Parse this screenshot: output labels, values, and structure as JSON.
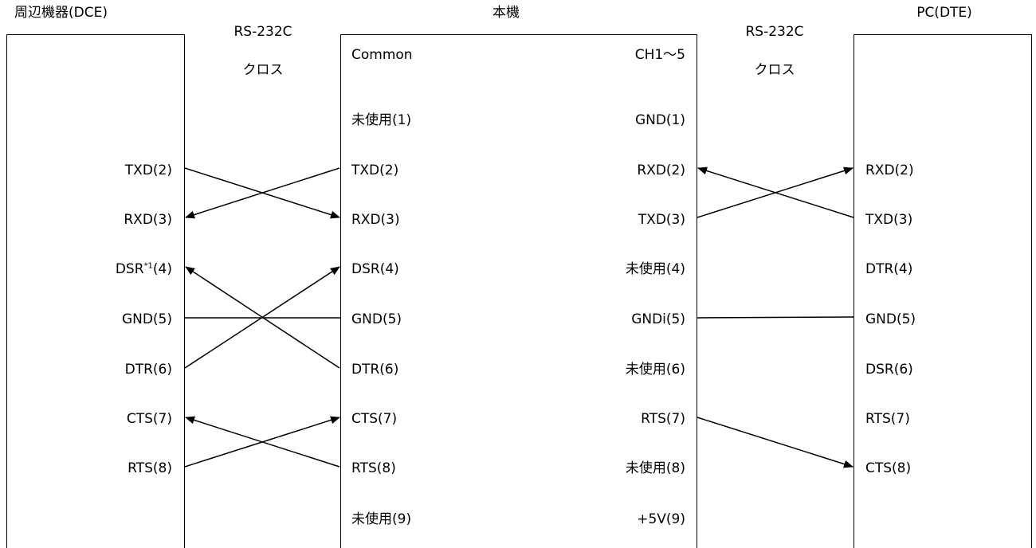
{
  "titles": {
    "dce": "周辺機器(DCE)",
    "main": "本機",
    "dte": "PC(DTE)"
  },
  "links": {
    "left": {
      "label1": "RS-232C",
      "label2": "クロス"
    },
    "right": {
      "label1": "RS-232C",
      "label2": "クロス"
    }
  },
  "main_headers": {
    "left": "Common",
    "right": "CH1～5"
  },
  "dce_pins": [
    "TXD(2)",
    "RXD(3)",
    "DSR",
    "GND(5)",
    "DTR(6)",
    "CTS(7)",
    "RTS(8)"
  ],
  "dce_dsr": {
    "sup": "*1",
    "tail": "(4)"
  },
  "main_left_pins": [
    "未使用(1)",
    "TXD(2)",
    "RXD(3)",
    "DSR(4)",
    "GND(5)",
    "DTR(6)",
    "CTS(7)",
    "RTS(8)",
    "未使用(9)"
  ],
  "main_right_pins": [
    "GND(1)",
    "RXD(2)",
    "TXD(3)",
    "未使用(4)",
    "GNDi(5)",
    "未使用(6)",
    "RTS(7)",
    "未使用(8)",
    "+5V(9)"
  ],
  "dte_pins": [
    "RXD(2)",
    "TXD(3)",
    "DTR(4)",
    "GND(5)",
    "DSR(6)",
    "RTS(7)",
    "CTS(8)"
  ],
  "colors": {
    "line": "#000000"
  }
}
